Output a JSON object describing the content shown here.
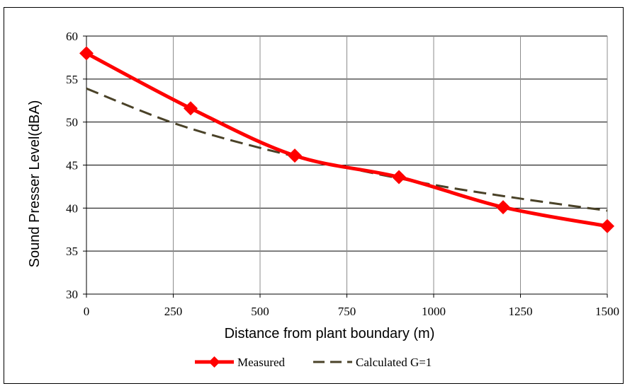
{
  "chart_data": {
    "type": "line",
    "xlabel": "Distance from plant boundary (m)",
    "ylabel": "Sound Presser Level(dBA)",
    "xlim": [
      0,
      1500
    ],
    "ylim": [
      30,
      60
    ],
    "xticks": [
      0,
      250,
      500,
      750,
      1000,
      1250,
      1500
    ],
    "yticks": [
      30,
      35,
      40,
      45,
      50,
      55,
      60
    ],
    "grid": true,
    "legend_position": "bottom",
    "series": [
      {
        "name": "Measured",
        "color": "#ff0000",
        "style": "solid",
        "marker": "diamond",
        "x": [
          0,
          300,
          600,
          900,
          1200,
          1500
        ],
        "y": [
          58,
          51.6,
          46.1,
          43.6,
          40.1,
          37.9
        ]
      },
      {
        "name": "Calculated G=1",
        "color": "#4a4228",
        "style": "dashed",
        "marker": "none",
        "x": [
          0,
          250,
          500,
          750,
          1000,
          1250,
          1500
        ],
        "y": [
          53.9,
          49.9,
          47.0,
          44.7,
          42.7,
          41.1,
          39.7
        ]
      }
    ]
  }
}
